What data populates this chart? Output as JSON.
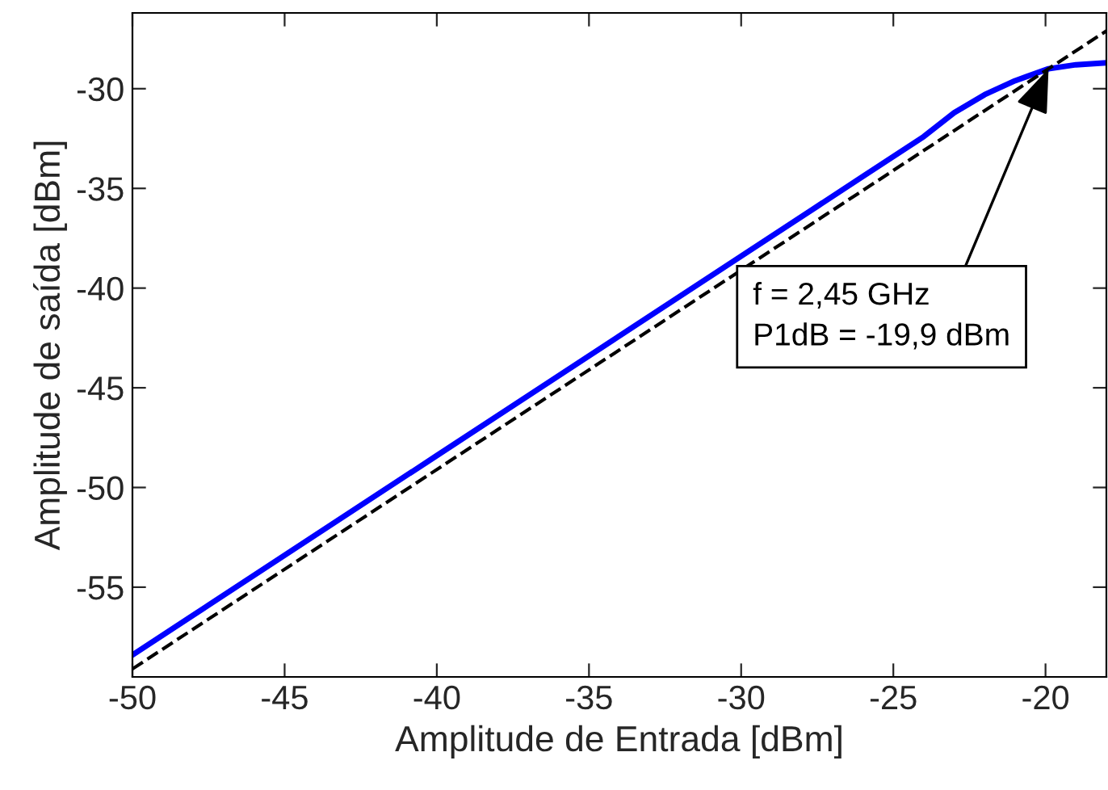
{
  "chart_data": {
    "type": "line",
    "xlabel": "Amplitude de Entrada [dBm]",
    "ylabel": "Amplitude de saída [dBm]",
    "xlim": [
      -50,
      -18
    ],
    "xticks": [
      -50,
      -45,
      -40,
      -35,
      -30,
      -25,
      -20
    ],
    "ylim": [
      -59.5,
      -26.2
    ],
    "yticks": [
      -55,
      -50,
      -45,
      -40,
      -35,
      -30
    ],
    "grid": false,
    "legend": false,
    "series": [
      {
        "x": [
          -50,
          -40,
          -30,
          -26,
          -24,
          -23,
          -22,
          -21,
          -19.9,
          -19,
          -18
        ],
        "values": [
          -58.4,
          -48.4,
          -38.4,
          -34.4,
          -32.4,
          -31.2,
          -30.3,
          -29.6,
          -29.0,
          -28.8,
          -28.7
        ],
        "color": "#0000ff",
        "line_style": "solid"
      },
      {
        "x": [
          -50,
          -18
        ],
        "values": [
          -59.1,
          -27.1
        ],
        "color": "#000000",
        "line_style": "dashed"
      }
    ],
    "annotations": [
      {
        "text": "f = 2,45 GHz\nP1dB = -19,9 dBm",
        "x": -19.9,
        "y": -29.0
      }
    ]
  }
}
